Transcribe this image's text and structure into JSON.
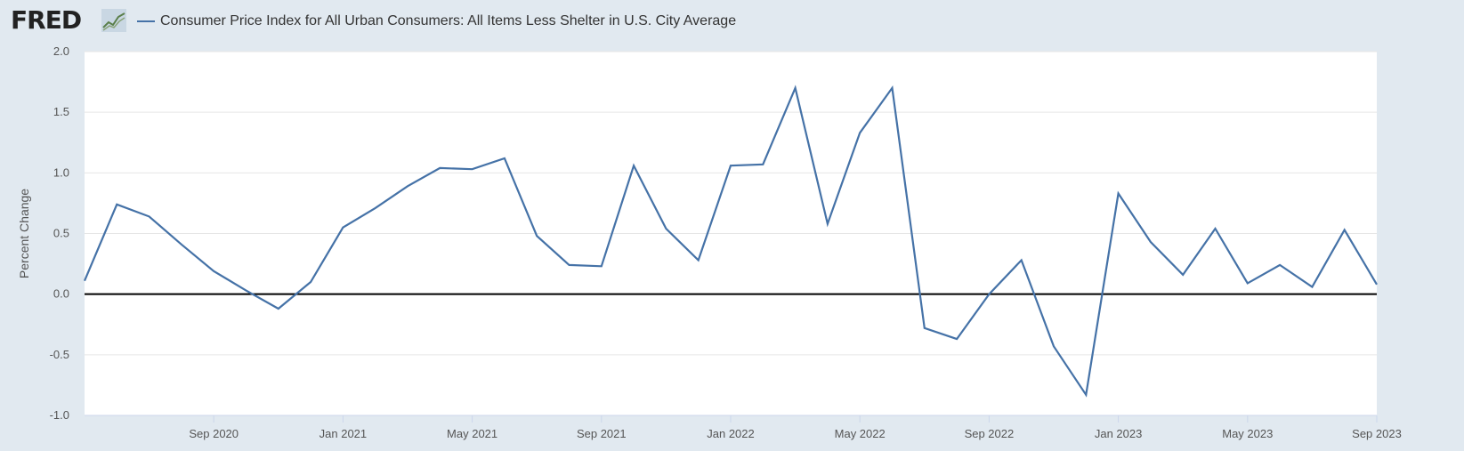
{
  "header": {
    "logo_text": "FRED",
    "logo_icon": "fred-chart-logo-icon"
  },
  "colors": {
    "background": "#e1e9f0",
    "plot_background": "#ffffff",
    "series": "#4572a7",
    "zero_line": "#000000",
    "grid": "#e6e6e6"
  },
  "chart_data": {
    "type": "line",
    "ylabel": "Percent Change",
    "ylim": [
      -1.0,
      2.0
    ],
    "y_ticks": [
      -1.0,
      -0.5,
      0.0,
      0.5,
      1.0,
      1.5,
      2.0
    ],
    "y_tick_labels": [
      "-1.0",
      "-0.5",
      "0.0",
      "0.5",
      "1.0",
      "1.5",
      "2.0"
    ],
    "x_range": [
      "2020-05",
      "2023-09"
    ],
    "x_ticks": [
      "2020-09",
      "2021-01",
      "2021-05",
      "2021-09",
      "2022-01",
      "2022-05",
      "2022-09",
      "2023-01",
      "2023-05",
      "2023-09"
    ],
    "x_tick_labels": [
      "Sep 2020",
      "Jan 2021",
      "May 2021",
      "Sep 2021",
      "Jan 2022",
      "May 2022",
      "Sep 2022",
      "Jan 2023",
      "May 2023",
      "Sep 2023"
    ],
    "grid": true,
    "zero_line": true,
    "series": [
      {
        "name": "Consumer Price Index for All Urban Consumers: All Items Less Shelter in U.S. City Average",
        "x": [
          "2020-05",
          "2020-06",
          "2020-07",
          "2020-08",
          "2020-09",
          "2020-10",
          "2020-11",
          "2020-12",
          "2021-01",
          "2021-02",
          "2021-03",
          "2021-04",
          "2021-05",
          "2021-06",
          "2021-07",
          "2021-08",
          "2021-09",
          "2021-10",
          "2021-11",
          "2021-12",
          "2022-01",
          "2022-02",
          "2022-03",
          "2022-04",
          "2022-05",
          "2022-06",
          "2022-07",
          "2022-08",
          "2022-09",
          "2022-10",
          "2022-11",
          "2022-12",
          "2023-01",
          "2023-02",
          "2023-03",
          "2023-04",
          "2023-05",
          "2023-06",
          "2023-07",
          "2023-08",
          "2023-09"
        ],
        "values": [
          0.11,
          0.74,
          0.64,
          0.41,
          0.19,
          0.03,
          -0.12,
          0.1,
          0.55,
          0.71,
          0.89,
          1.04,
          1.03,
          1.12,
          0.48,
          0.24,
          0.23,
          1.06,
          0.54,
          0.28,
          1.06,
          1.07,
          1.7,
          0.58,
          1.33,
          1.7,
          -0.28,
          -0.37,
          0.0,
          0.28,
          -0.43,
          -0.83,
          0.83,
          0.43,
          0.16,
          0.54,
          0.09,
          0.24,
          0.06,
          0.53,
          0.08
        ]
      }
    ]
  }
}
